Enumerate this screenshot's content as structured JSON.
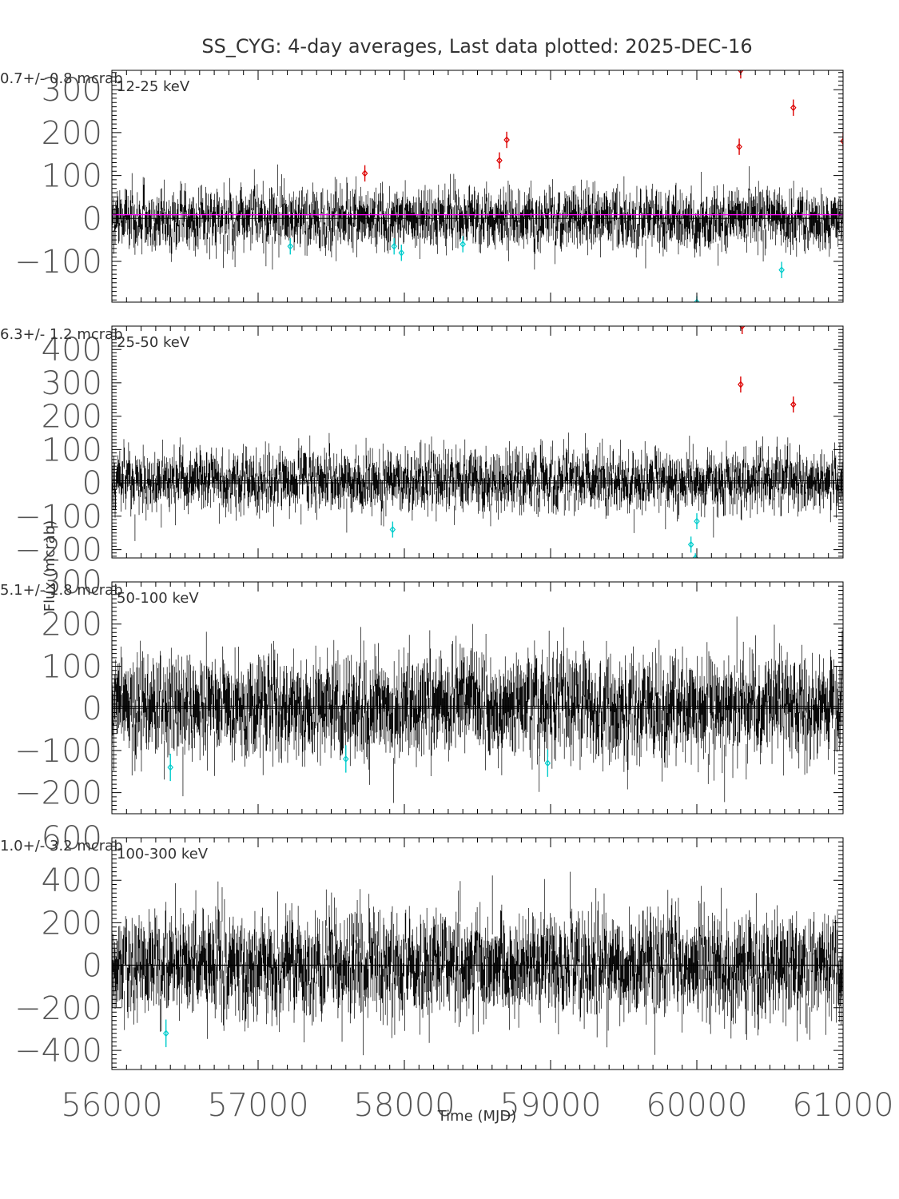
{
  "chart_data": {
    "type": "scatter",
    "title": "SS_CYG:  4-day averages,  Last data plotted: 2025-DEC-16",
    "xlabel": "Time (MJD)",
    "ylabel": "Flux (mcrab)",
    "xlim": [
      56000,
      61000
    ],
    "xticks": [
      56000,
      57000,
      58000,
      59000,
      60000,
      61000
    ],
    "grid": false,
    "panels": [
      {
        "band": "12-25 keV",
        "mean_label": "0.7+/-    0.8 mcrab",
        "mean": 0.7,
        "ylim": [
          -195,
          345
        ],
        "yticks": [
          -100,
          0,
          100,
          200,
          300
        ],
        "noise_sigma": 38,
        "high_points": [
          {
            "x": 57730,
            "y": 105
          },
          {
            "x": 58650,
            "y": 135
          },
          {
            "x": 58700,
            "y": 183
          },
          {
            "x": 60290,
            "y": 167
          },
          {
            "x": 60300,
            "y": 345
          },
          {
            "x": 60660,
            "y": 258
          },
          {
            "x": 61000,
            "y": 180
          }
        ],
        "low_points": [
          {
            "x": 57220,
            "y": -65
          },
          {
            "x": 57930,
            "y": -65
          },
          {
            "x": 57980,
            "y": -80
          },
          {
            "x": 58400,
            "y": -60
          },
          {
            "x": 60000,
            "y": -200
          },
          {
            "x": 60580,
            "y": -120
          }
        ]
      },
      {
        "band": "25-50 keV",
        "mean_label": "6.3+/-    1.2 mcrab",
        "mean": 6.3,
        "ylim": [
          -225,
          470
        ],
        "yticks": [
          -200,
          -100,
          0,
          100,
          200,
          300,
          400
        ],
        "noise_sigma": 48,
        "high_points": [
          {
            "x": 60300,
            "y": 295
          },
          {
            "x": 60310,
            "y": 470
          },
          {
            "x": 60660,
            "y": 235
          }
        ],
        "low_points": [
          {
            "x": 57920,
            "y": -140
          },
          {
            "x": 59960,
            "y": -185
          },
          {
            "x": 60000,
            "y": -115
          },
          {
            "x": 59990,
            "y": -235
          }
        ]
      },
      {
        "band": "50-100 keV",
        "mean_label": "5.1+/-    1.8 mcrab",
        "mean": 5.1,
        "ylim": [
          -250,
          300
        ],
        "yticks": [
          -200,
          -100,
          0,
          100,
          200,
          300
        ],
        "noise_sigma": 65,
        "high_points": [],
        "low_points": [
          {
            "x": 56400,
            "y": -140
          },
          {
            "x": 57600,
            "y": -120
          },
          {
            "x": 58980,
            "y": -130
          }
        ]
      },
      {
        "band": "100-300 keV",
        "mean_label": "1.0+/-    3.2 mcrab",
        "mean": 1.0,
        "ylim": [
          -490,
          600
        ],
        "yticks": [
          -400,
          -200,
          0,
          200,
          400,
          600
        ],
        "noise_sigma": 130,
        "high_points": [],
        "low_points": [
          {
            "x": 56370,
            "y": -320
          }
        ]
      }
    ],
    "colors": {
      "data": "#000000",
      "high_points": "#dd0000",
      "low_points": "#00cccc",
      "mean_line_panel1": "#ff00ff",
      "zero_line": "#000000"
    }
  }
}
